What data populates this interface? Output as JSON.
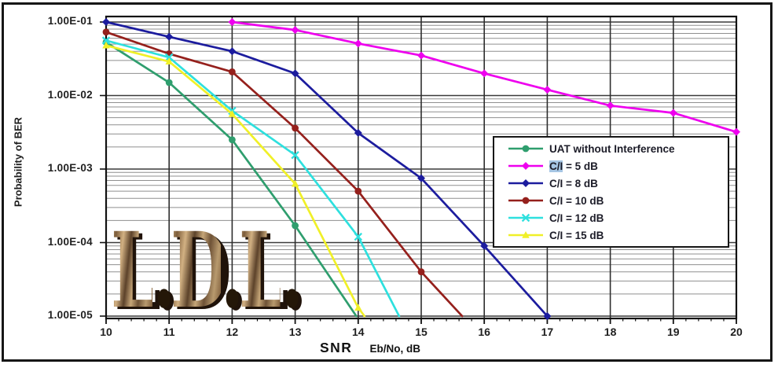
{
  "watermark": {
    "parts": [
      "L",
      ".",
      "D",
      ".",
      "L",
      "."
    ]
  },
  "chart_data": {
    "type": "line",
    "title": "",
    "xlabel": "SNR Eb/No, dB",
    "xlabel_bold": "SNR",
    "xlabel_units": "Eb/No, dB",
    "ylabel": "Probability of BER",
    "x_axis": {
      "min": 10,
      "max": 20,
      "major_step": 1,
      "minor_step": 0.2
    },
    "y_axis": {
      "scale": "log",
      "min": 1e-05,
      "max": 0.12,
      "tick_labels": [
        "1.00E-01",
        "1.00E-02",
        "1.00E-03",
        "1.00E-04",
        "1.00E-05"
      ],
      "tick_values": [
        0.1,
        0.01,
        0.001,
        0.0001,
        1e-05
      ]
    },
    "x_tick_labels": [
      "10",
      "11",
      "12",
      "13",
      "14",
      "15",
      "16",
      "17",
      "18",
      "19",
      "20"
    ],
    "grid": {
      "horizontal_major": true,
      "horizontal_minor": true,
      "vertical_major": true
    },
    "legend_position": "middle-right",
    "legend_items": [
      {
        "parts": [
          {
            "text": "UAT without Interference",
            "highlight": false
          }
        ]
      },
      {
        "parts": [
          {
            "text": "C/I",
            "highlight": true
          },
          {
            "text": " = 5 dB",
            "highlight": false
          }
        ]
      },
      {
        "parts": [
          {
            "text": "C/I",
            "highlight": false
          },
          {
            "text": " = 8 dB",
            "highlight": false
          }
        ]
      },
      {
        "parts": [
          {
            "text": "C/I",
            "highlight": false
          },
          {
            "text": " = 10 dB",
            "highlight": false
          }
        ]
      },
      {
        "parts": [
          {
            "text": "C/I",
            "highlight": false
          },
          {
            "text": " = 12 dB",
            "highlight": false
          }
        ]
      },
      {
        "parts": [
          {
            "text": "C/I",
            "highlight": false
          },
          {
            "text": " = 15 dB",
            "highlight": false
          }
        ]
      }
    ],
    "series": [
      {
        "name": "UAT without Interference",
        "color": "#2F9E6E",
        "marker": "circle",
        "points": [
          [
            10,
            0.053
          ],
          [
            11,
            0.015
          ],
          [
            12,
            0.0025
          ],
          [
            13,
            0.00017
          ],
          [
            13.97,
            1e-05
          ]
        ]
      },
      {
        "name": "C/I = 5 dB",
        "color": "#EE00EE",
        "marker": "diamond",
        "points": [
          [
            12,
            0.1
          ],
          [
            13,
            0.078
          ],
          [
            14,
            0.051
          ],
          [
            15,
            0.035
          ],
          [
            16,
            0.02
          ],
          [
            17,
            0.012
          ],
          [
            18,
            0.0073
          ],
          [
            19,
            0.0058
          ],
          [
            20,
            0.0032
          ]
        ]
      },
      {
        "name": "C/I = 8 dB",
        "color": "#1C1C9E",
        "marker": "diamond",
        "points": [
          [
            10,
            0.1
          ],
          [
            11,
            0.063
          ],
          [
            12,
            0.04
          ],
          [
            13,
            0.02
          ],
          [
            14,
            0.0031
          ],
          [
            15,
            0.00075
          ],
          [
            16,
            9e-05
          ],
          [
            17,
            1e-05
          ]
        ]
      },
      {
        "name": "C/I = 10 dB",
        "color": "#95201C",
        "marker": "circle",
        "points": [
          [
            10,
            0.073
          ],
          [
            11,
            0.037
          ],
          [
            12,
            0.021
          ],
          [
            13,
            0.0036
          ],
          [
            14,
            0.0005
          ],
          [
            15,
            4e-05
          ],
          [
            15.65,
            1e-05
          ]
        ]
      },
      {
        "name": "C/I = 12 dB",
        "color": "#2EE0DE",
        "marker": "x",
        "points": [
          [
            10,
            0.056
          ],
          [
            11,
            0.033
          ],
          [
            12,
            0.0062
          ],
          [
            13,
            0.00155
          ],
          [
            14,
            0.00012
          ],
          [
            14.65,
            1e-05
          ]
        ]
      },
      {
        "name": "C/I = 15 dB",
        "color": "#F0F028",
        "marker": "triangle",
        "points": [
          [
            10,
            0.048
          ],
          [
            11,
            0.029
          ],
          [
            12,
            0.0056
          ],
          [
            13,
            0.00063
          ],
          [
            14,
            1.3e-05
          ],
          [
            14.1,
            1e-05
          ]
        ]
      }
    ]
  }
}
